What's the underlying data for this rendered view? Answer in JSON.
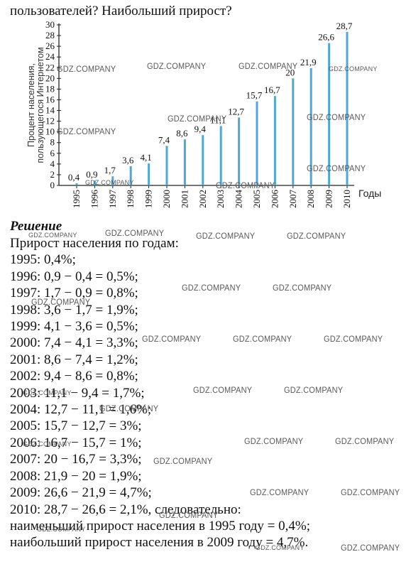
{
  "intro": "пользователей? Наибольший прирост?",
  "chart_data": {
    "type": "bar",
    "ylabel_line1": "Процент населения,",
    "ylabel_line2": "пользующегося Интернетом",
    "xlabel": "Годы",
    "categories": [
      "1995",
      "1996",
      "1997",
      "1998",
      "1999",
      "2000",
      "2001",
      "2002",
      "2003",
      "2004",
      "2005",
      "2006",
      "2007",
      "2008",
      "2009",
      "2010"
    ],
    "values": [
      0.4,
      0.9,
      1.7,
      3.6,
      4.1,
      7.4,
      8.6,
      9.4,
      11.1,
      12.7,
      15.7,
      16.7,
      20,
      21.9,
      26.6,
      28.7
    ],
    "value_labels": [
      "0,4",
      "0,9",
      "1,7",
      "3,6",
      "4,1",
      "7,4",
      "8,6",
      "9,4",
      "11,1",
      "12,7",
      "15,7",
      "16,7",
      "20",
      "21,9",
      "26,6",
      "28,7"
    ],
    "y_ticks": [
      0,
      2,
      4,
      6,
      8,
      10,
      12,
      14,
      16,
      18,
      20,
      22,
      24,
      26,
      28,
      30
    ],
    "ylim": [
      0,
      30
    ],
    "grid": false,
    "bar_color": "#4ea7d6"
  },
  "solution": {
    "heading": "Решение",
    "lines": [
      "Прирост населения по годам:",
      "1995: 0,4%;",
      "1996: 0,9 − 0,4 = 0,5%;",
      "1997: 1,7 − 0,9 = 0,8%;",
      "1998: 3,6 − 1,7 = 1,9%;",
      "1999: 4,1 − 3,6 = 0,5%;",
      "2000: 7,4 − 4,1 = 3,3%;",
      "2001: 8,6 − 7,4 = 1,2%;",
      "2002: 9,4 − 8,6 = 0,8%;",
      "2003: 11,1 − 9,4 = 1,7%;",
      "2004: 12,7 − 11,1 = 1,6%;",
      "2005: 15,7 − 12,7 = 3%;",
      "2006: 16,7 − 15,7 = 1%;",
      "2007: 20 − 16,7 = 3,3%;",
      "2008: 21,9 − 20 = 1,9%;",
      "2009: 26,6 − 21,9 = 4,7%;",
      "2010: 28,7 − 26,6 = 2,1%, следовательно:",
      "наименьший прирост населения в 1995 году = 0,4%;",
      "наибольший прирост населения в 2009 году = 4,7%."
    ]
  },
  "watermark_text": "GDZ.COMPANY"
}
